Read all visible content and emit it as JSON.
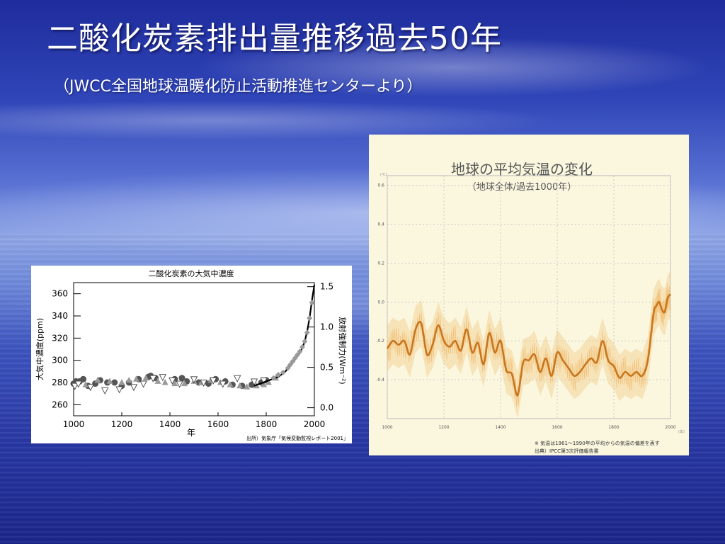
{
  "slide": {
    "title": "二酸化炭素排出量推移過去50年",
    "subtitle": "（JWCC全国地球温暖化防止活動推進センターより）"
  },
  "colors": {
    "background": "#2f45b8",
    "temp_line": "#c8761e",
    "temp_band": "#f2c98a",
    "temp_panel": "#fbf7df",
    "co2_grey": "#9a9a9a",
    "co2_dark": "#555555"
  },
  "chart_data": [
    {
      "type": "scatter",
      "title": "二酸化炭素の大気中濃度",
      "xlabel": "年",
      "ylabel": "大気中濃度(ppm)",
      "y2label": "放射強制力(Wm⁻²)",
      "xlim": [
        1000,
        2000
      ],
      "ylim": [
        250,
        370
      ],
      "y2lim": [
        -0.1,
        1.55
      ],
      "x_ticks": [
        1000,
        1200,
        1400,
        1600,
        1800,
        2000
      ],
      "y_ticks": [
        260,
        280,
        300,
        320,
        340,
        360
      ],
      "y2_ticks": [
        "0.0",
        "0.5",
        "1.0",
        "1.5"
      ],
      "source": "出所）気象庁「気候変動監視レポート2001」",
      "series": [
        {
          "marker": "circle",
          "x": [
            1000,
            1010,
            1025,
            1040,
            1060,
            1090,
            1110,
            1140,
            1170,
            1200,
            1230,
            1270,
            1310,
            1320,
            1340,
            1420,
            1450,
            1470,
            1520,
            1560,
            1590,
            1630,
            1660,
            1700,
            1740,
            1780,
            1800
          ],
          "y": [
            279,
            281,
            281,
            283,
            277,
            279,
            282,
            280,
            280,
            277,
            280,
            283,
            285,
            286,
            284,
            283,
            284,
            281,
            280,
            279,
            283,
            281,
            278,
            277,
            278,
            280,
            282
          ]
        },
        {
          "marker": "triangle",
          "x": [
            1050,
            1100,
            1150,
            1200,
            1230,
            1260,
            1300,
            1350,
            1380,
            1420,
            1460,
            1500,
            1530,
            1570,
            1610,
            1650,
            1690,
            1720,
            1760,
            1790,
            1810,
            1840
          ],
          "y": [
            278,
            282,
            281,
            280,
            282,
            283,
            284,
            281,
            280,
            279,
            279,
            281,
            280,
            282,
            280,
            278,
            277,
            276,
            277,
            278,
            280,
            284
          ]
        },
        {
          "marker": "triangle-open",
          "x": [
            1005,
            1020,
            1070,
            1130,
            1190,
            1250,
            1290,
            1330,
            1370,
            1410,
            1440,
            1500,
            1540,
            1580,
            1620,
            1680,
            1750,
            1790
          ],
          "y": [
            277,
            279,
            276,
            273,
            274,
            276,
            279,
            284,
            285,
            282,
            279,
            283,
            280,
            282,
            279,
            284,
            281,
            282
          ]
        },
        {
          "marker": "line",
          "x": [
            1750,
            1800,
            1850,
            1880,
            1900,
            1920,
            1940,
            1950,
            1960,
            1970,
            1980,
            1990,
            2000
          ],
          "y": [
            277,
            281,
            285,
            290,
            296,
            301,
            307,
            311,
            317,
            326,
            338,
            354,
            368
          ]
        },
        {
          "marker": "diamond",
          "x": [
            1830,
            1850,
            1870,
            1890,
            1900,
            1910,
            1920,
            1930,
            1940,
            1950,
            1960,
            1970,
            1980,
            1990
          ],
          "y": [
            284,
            287,
            289,
            293,
            296,
            299,
            302,
            305,
            308,
            312,
            317,
            325,
            338,
            352
          ]
        }
      ]
    },
    {
      "type": "line",
      "title": "地球の平均気温の変化",
      "subtitle": "（地球全体/過去1000年）",
      "xlim": [
        1000,
        2000
      ],
      "ylim": [
        -0.6,
        0.65
      ],
      "x_ticks": [
        1000,
        1200,
        1400,
        1600,
        1800,
        2000
      ],
      "y_ticks": [
        "0.6",
        "0.4",
        "0.2",
        "0.0",
        "-0.2",
        "-0.4"
      ],
      "y_unit": "(℃)",
      "x_unit": "(年)",
      "note": "※ 気温は1961～1990年の平均からの気温の偏差を表す",
      "source": "出典）IPCC第3次評価報告書",
      "series": [
        {
          "x": [
            1000,
            1020,
            1040,
            1060,
            1080,
            1100,
            1120,
            1140,
            1160,
            1180,
            1200,
            1220,
            1240,
            1260,
            1280,
            1300,
            1320,
            1340,
            1360,
            1380,
            1400,
            1420,
            1440,
            1460,
            1480,
            1500,
            1520,
            1540,
            1560,
            1580,
            1600,
            1620,
            1640,
            1660,
            1680,
            1700,
            1720,
            1740,
            1760,
            1780,
            1800,
            1820,
            1840,
            1860,
            1880,
            1900,
            1920,
            1940,
            1950,
            1960,
            1970,
            1980,
            1990,
            2000
          ],
          "y": [
            -0.24,
            -0.2,
            -0.22,
            -0.2,
            -0.27,
            -0.14,
            -0.11,
            -0.27,
            -0.22,
            -0.12,
            -0.2,
            -0.23,
            -0.2,
            -0.25,
            -0.14,
            -0.26,
            -0.21,
            -0.32,
            -0.16,
            -0.26,
            -0.2,
            -0.35,
            -0.37,
            -0.48,
            -0.31,
            -0.3,
            -0.27,
            -0.36,
            -0.29,
            -0.38,
            -0.26,
            -0.3,
            -0.34,
            -0.38,
            -0.36,
            -0.32,
            -0.29,
            -0.31,
            -0.2,
            -0.3,
            -0.33,
            -0.39,
            -0.36,
            -0.38,
            -0.36,
            -0.38,
            -0.3,
            -0.06,
            -0.02,
            0.0,
            -0.04,
            -0.05,
            0.02,
            0.04
          ]
        }
      ]
    }
  ]
}
